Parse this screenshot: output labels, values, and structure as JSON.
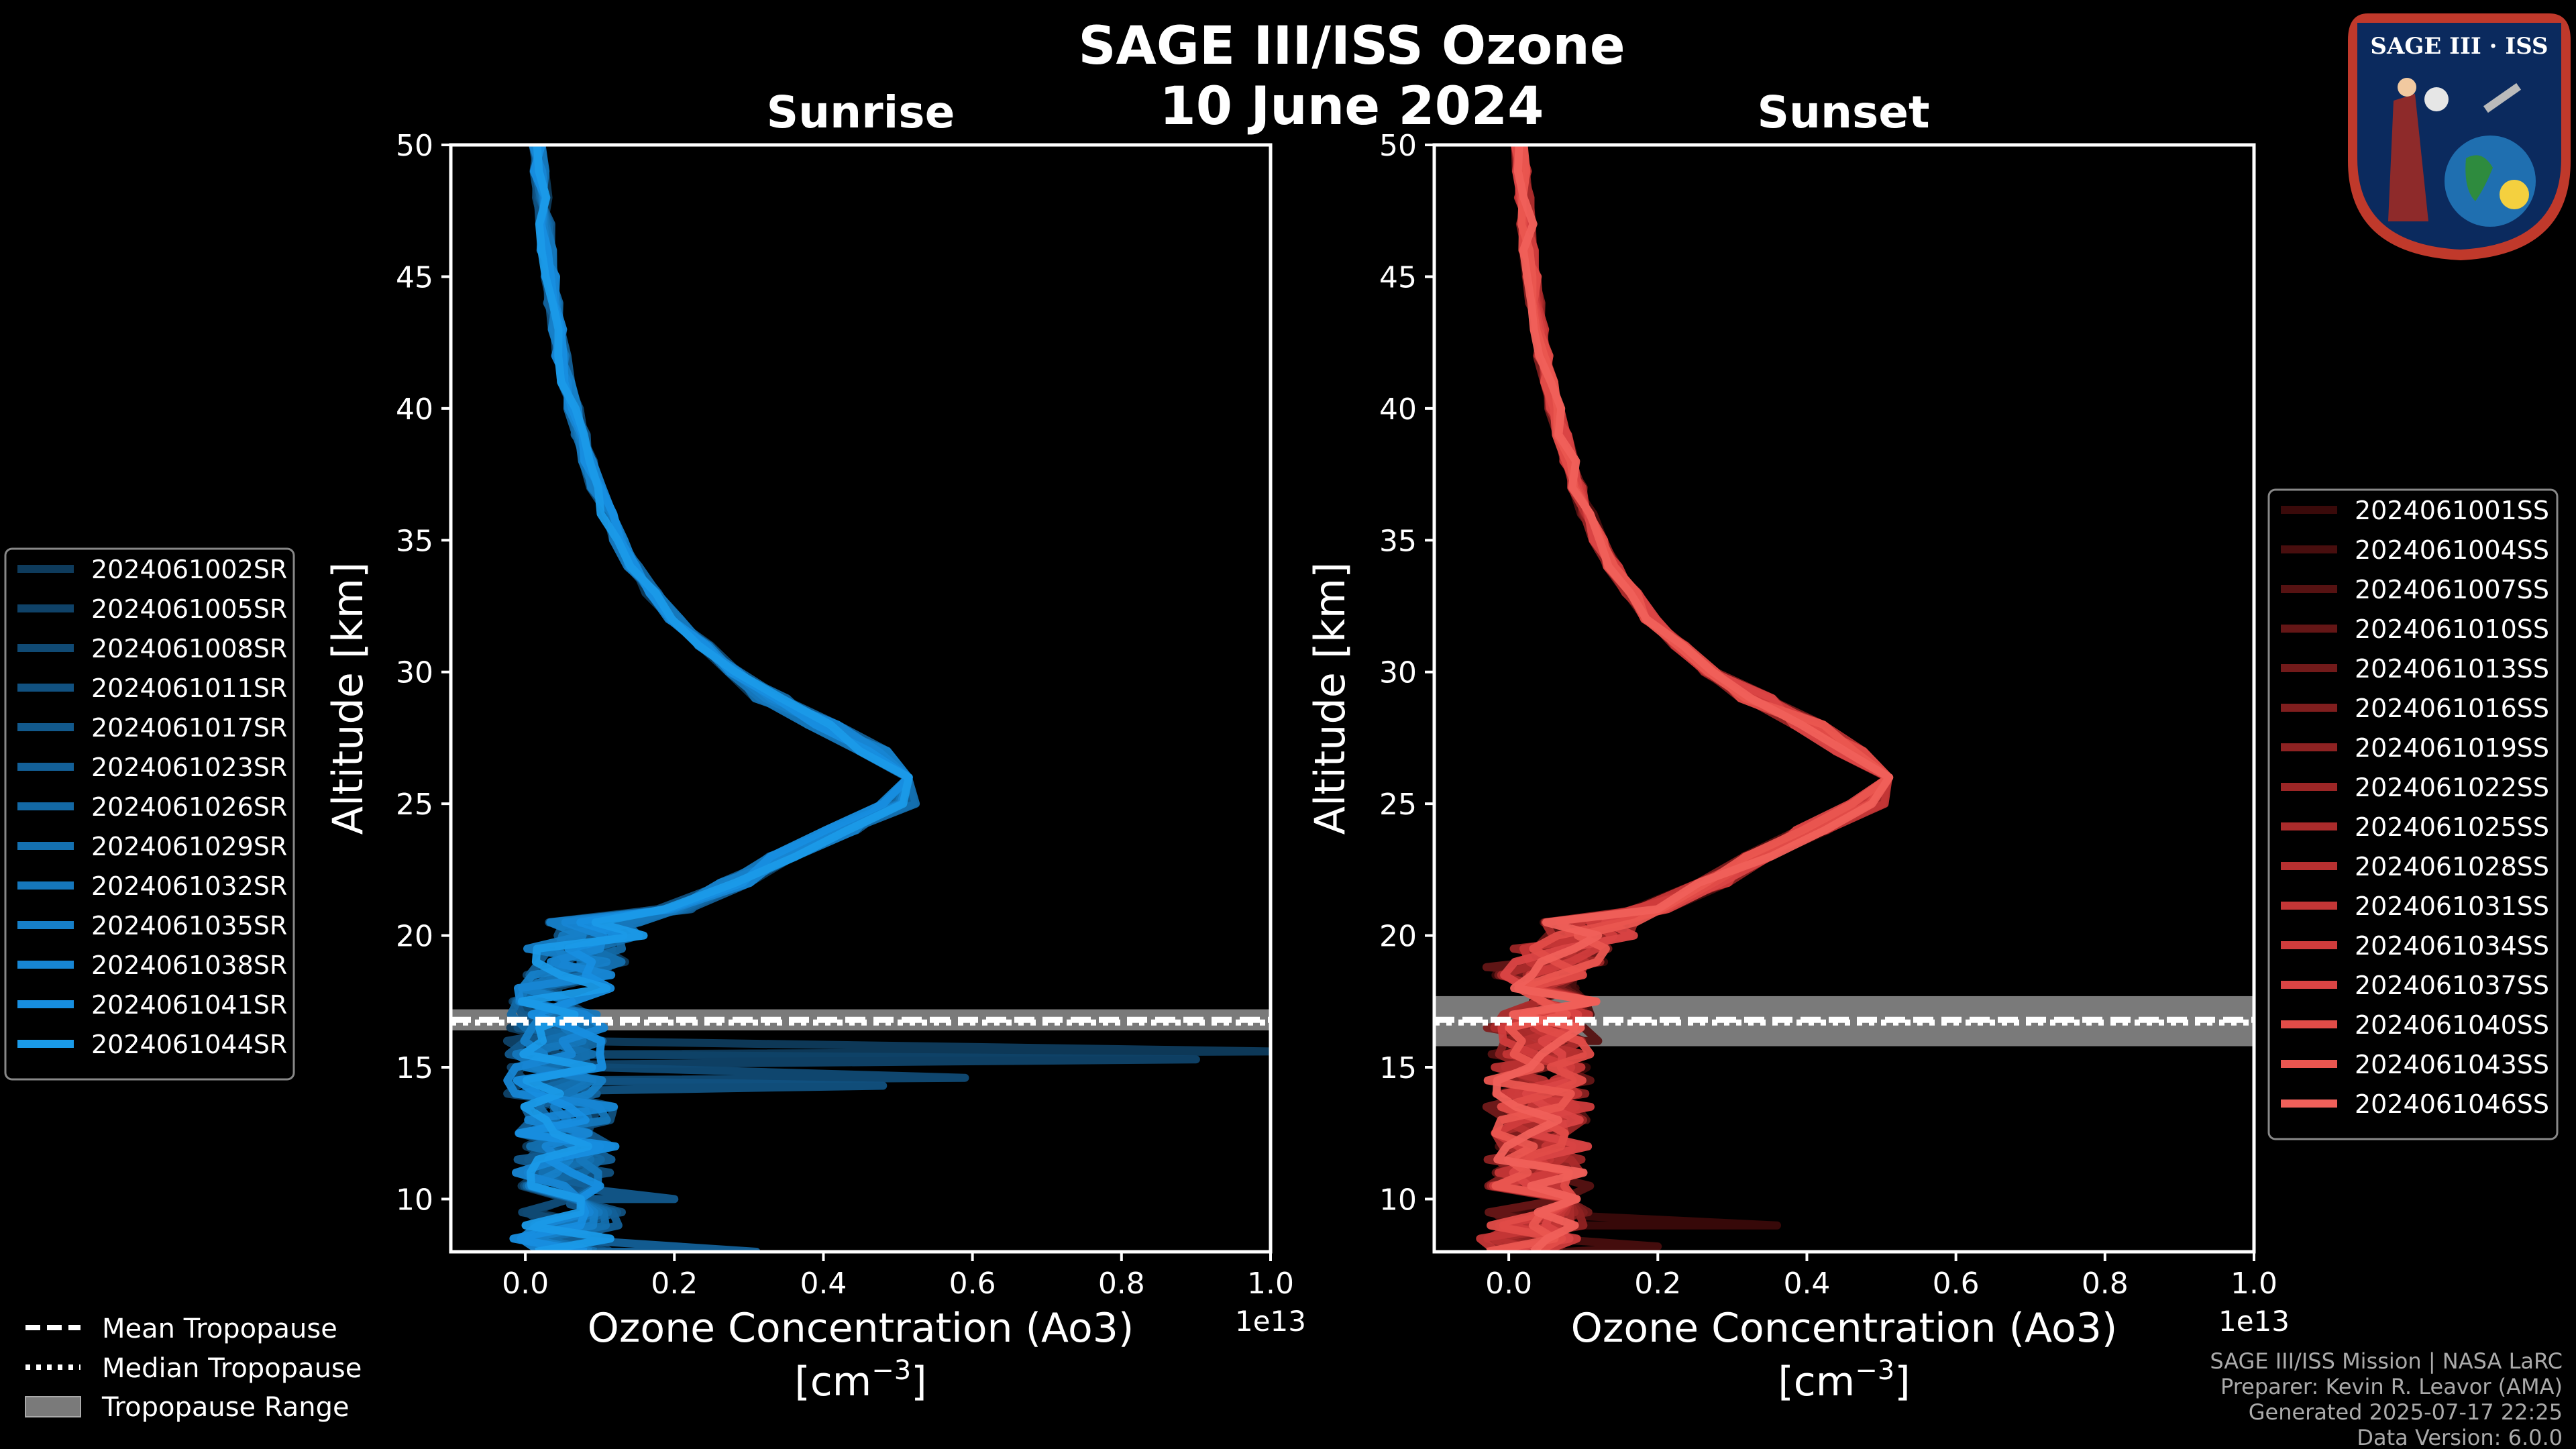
{
  "figure": {
    "title_line1": "SAGE III/ISS Ozone",
    "title_line2": "10 June 2024",
    "logo_text": "SAGE III · ISS",
    "credits": [
      "SAGE III/ISS Mission | NASA LaRC",
      "Preparer: Kevin R. Leavor (AMA)",
      "Generated 2025-07-17 22:25",
      "Data Version: 6.0.0"
    ],
    "bottom_legend": [
      {
        "label": "Mean Tropopause",
        "style": "dashed"
      },
      {
        "label": "Median Tropopause",
        "style": "dotted"
      },
      {
        "label": "Tropopause Range",
        "style": "band"
      }
    ]
  },
  "chart_data": [
    {
      "type": "line",
      "panel": "sunrise",
      "title": "Sunrise",
      "xlabel": "Ozone Concentration (Ao3)",
      "xlabel_unit": "[cm",
      "xlabel_unit_sup": "−3",
      "xlabel_unit_close": "]",
      "x_offset_label": "1e13",
      "ylabel": "Altitude [km]",
      "xlim": [
        -0.1,
        1.0
      ],
      "ylim": [
        8,
        50
      ],
      "xticks": [
        0.0,
        0.2,
        0.4,
        0.6,
        0.8,
        1.0
      ],
      "xtick_labels": [
        "0.0",
        "0.2",
        "0.4",
        "0.6",
        "0.8",
        "1.0"
      ],
      "yticks": [
        10,
        15,
        20,
        25,
        30,
        35,
        40,
        45,
        50
      ],
      "ytick_labels": [
        "10",
        "15",
        "20",
        "25",
        "30",
        "35",
        "40",
        "45",
        "50"
      ],
      "tropopause": {
        "mean": 16.8,
        "median": 16.7,
        "range": [
          16.4,
          17.2
        ]
      },
      "legend": [
        "2024061002SR",
        "2024061005SR",
        "2024061008SR",
        "2024061011SR",
        "2024061017SR",
        "2024061023SR",
        "2024061026SR",
        "2024061029SR",
        "2024061032SR",
        "2024061035SR",
        "2024061038SR",
        "2024061041SR",
        "2024061044SR"
      ],
      "colors": [
        "#0e3b5c",
        "#0f4268",
        "#104a74",
        "#115180",
        "#12598c",
        "#136098",
        "#1368a4",
        "#1470b0",
        "#1577bc",
        "#167fc8",
        "#1786d4",
        "#178ee0",
        "#1a9ae8"
      ],
      "altitude": [
        8,
        9,
        10,
        11,
        12,
        13,
        14,
        15,
        16,
        17,
        18,
        19,
        20,
        21,
        22,
        23,
        24,
        25,
        26,
        27,
        28,
        29,
        30,
        31,
        32,
        33,
        34,
        35,
        36,
        37,
        38,
        39,
        40,
        41,
        42,
        43,
        44,
        45,
        46,
        47,
        48,
        49,
        50
      ],
      "mean_profile": [
        0.05,
        0.06,
        0.06,
        0.05,
        0.06,
        0.05,
        0.04,
        0.04,
        0.04,
        0.04,
        0.05,
        0.07,
        0.1,
        0.2,
        0.28,
        0.35,
        0.42,
        0.5,
        0.52,
        0.47,
        0.4,
        0.33,
        0.28,
        0.24,
        0.2,
        0.17,
        0.145,
        0.125,
        0.11,
        0.095,
        0.085,
        0.075,
        0.065,
        0.055,
        0.048,
        0.042,
        0.037,
        0.033,
        0.029,
        0.026,
        0.023,
        0.02,
        0.018
      ],
      "spikes": [
        {
          "altitude": 15.6,
          "value": 1.0
        },
        {
          "altitude": 15.3,
          "value": 0.9
        },
        {
          "altitude": 14.6,
          "value": 0.59
        },
        {
          "altitude": 14.3,
          "value": 0.48
        },
        {
          "altitude": 10.0,
          "value": 0.2
        },
        {
          "altitude": 8.0,
          "value": 0.31
        }
      ]
    },
    {
      "type": "line",
      "panel": "sunset",
      "title": "Sunset",
      "xlabel": "Ozone Concentration (Ao3)",
      "xlabel_unit": "[cm",
      "xlabel_unit_sup": "−3",
      "xlabel_unit_close": "]",
      "x_offset_label": "1e13",
      "ylabel": "Altitude [km]",
      "xlim": [
        -0.1,
        1.0
      ],
      "ylim": [
        8,
        50
      ],
      "xticks": [
        0.0,
        0.2,
        0.4,
        0.6,
        0.8,
        1.0
      ],
      "xtick_labels": [
        "0.0",
        "0.2",
        "0.4",
        "0.6",
        "0.8",
        "1.0"
      ],
      "yticks": [
        10,
        15,
        20,
        25,
        30,
        35,
        40,
        45,
        50
      ],
      "ytick_labels": [
        "10",
        "15",
        "20",
        "25",
        "30",
        "35",
        "40",
        "45",
        "50"
      ],
      "tropopause": {
        "mean": 16.8,
        "median": 16.7,
        "range": [
          15.8,
          17.7
        ]
      },
      "legend": [
        "2024061001SS",
        "2024061004SS",
        "2024061007SS",
        "2024061010SS",
        "2024061013SS",
        "2024061016SS",
        "2024061019SS",
        "2024061022SS",
        "2024061025SS",
        "2024061028SS",
        "2024061031SS",
        "2024061034SS",
        "2024061037SS",
        "2024061040SS",
        "2024061043SS",
        "2024061046SS"
      ],
      "colors": [
        "#3a0a0a",
        "#480e0e",
        "#561212",
        "#641616",
        "#721a1a",
        "#801e1e",
        "#8e2222",
        "#9c2626",
        "#aa2b2b",
        "#b83030",
        "#c43636",
        "#d03c3c",
        "#da4444",
        "#e24c48",
        "#ea5650",
        "#f0605a"
      ],
      "altitude": [
        8,
        9,
        10,
        11,
        12,
        13,
        14,
        15,
        16,
        17,
        18,
        19,
        20,
        21,
        22,
        23,
        24,
        25,
        26,
        27,
        28,
        29,
        30,
        31,
        32,
        33,
        34,
        35,
        36,
        37,
        38,
        39,
        40,
        41,
        42,
        43,
        44,
        45,
        46,
        47,
        48,
        49,
        50
      ],
      "mean_profile": [
        0.03,
        0.04,
        0.04,
        0.04,
        0.05,
        0.04,
        0.04,
        0.04,
        0.04,
        0.05,
        0.05,
        0.07,
        0.11,
        0.19,
        0.27,
        0.34,
        0.41,
        0.48,
        0.5,
        0.46,
        0.4,
        0.33,
        0.27,
        0.23,
        0.19,
        0.165,
        0.14,
        0.12,
        0.105,
        0.092,
        0.082,
        0.072,
        0.062,
        0.053,
        0.046,
        0.04,
        0.035,
        0.031,
        0.027,
        0.024,
        0.021,
        0.018,
        0.016
      ],
      "spikes": [
        {
          "altitude": 9.0,
          "value": 0.36
        },
        {
          "altitude": 8.2,
          "value": 0.2
        },
        {
          "altitude": 16.0,
          "value": 0.12
        },
        {
          "altitude": 18.8,
          "value": -0.03
        }
      ]
    }
  ]
}
